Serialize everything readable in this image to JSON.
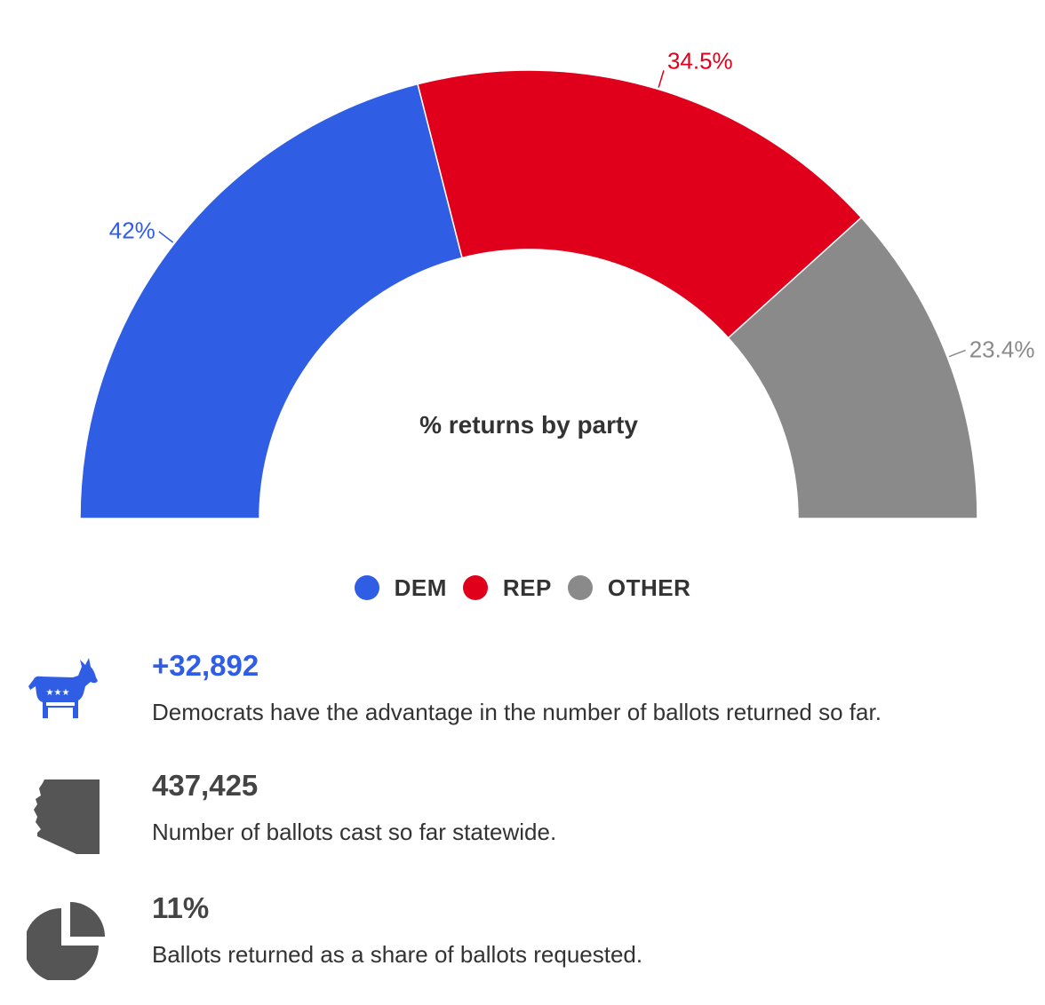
{
  "colors": {
    "dem": "#2f5ee5",
    "rep": "#e0001b",
    "other": "#8a8a8a",
    "stat_dark": "#444444",
    "icon_gray": "#555555"
  },
  "chart_data": {
    "type": "pie",
    "subtype": "semi-donut",
    "title": "% returns by party",
    "slices": [
      {
        "name": "DEM",
        "value": 42,
        "label": "42%",
        "color": "#2f5ee5"
      },
      {
        "name": "REP",
        "value": 34.5,
        "label": "34.5%",
        "color": "#e0001b"
      },
      {
        "name": "OTHER",
        "value": 23.4,
        "label": "23.4%",
        "color": "#8a8a8a"
      }
    ],
    "legend": {
      "position": "bottom-center"
    }
  },
  "stats": [
    {
      "value": "+32,892",
      "description": "Democrats have the advantage in the number of ballots returned so far.",
      "icon": "donkey-icon",
      "value_color": "#2f5ee5"
    },
    {
      "value": "437,425",
      "description": "Number of ballots cast so far statewide.",
      "icon": "arizona-map-icon",
      "value_color": "#444444"
    },
    {
      "value": "11%",
      "description": "Ballots returned as a share of ballots requested.",
      "icon": "pie-chart-icon",
      "value_color": "#444444"
    }
  ]
}
